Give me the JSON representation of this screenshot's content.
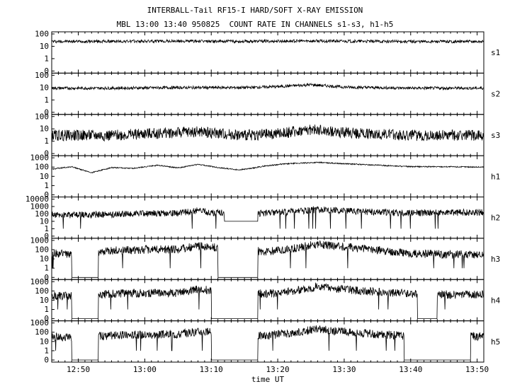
{
  "title": "INTERBALL-Tail RF15-I HARD/SOFT X-RAY EMISSION",
  "subtitle": "MBL 13:00 13:40 950825  COUNT RATE IN CHANNELS s1-s3, h1-h5",
  "xlabel": "time UT",
  "chart_data": {
    "type": "line",
    "title": "INTERBALL-Tail RF15-I HARD/SOFT X-RAY EMISSION",
    "subtitle": "MBL 13:00 13:40 950825  COUNT RATE IN CHANNELS s1-s3, h1-h5",
    "xlabel": "time UT",
    "x_range": [
      "12:46",
      "13:51"
    ],
    "x_ticks": [
      "12:50",
      "13:00",
      "13:10",
      "13:20",
      "13:30",
      "13:40",
      "13:50"
    ],
    "y_scale": "log",
    "grid": false,
    "series": [
      {
        "name": "s1",
        "ylim": [
          0,
          100
        ],
        "y_ticks": [
          "0",
          "1",
          "10",
          "100"
        ],
        "x": [
          "12:46",
          "12:55",
          "13:05",
          "13:15",
          "13:25",
          "13:35",
          "13:45",
          "13:51"
        ],
        "values": [
          25,
          25,
          26,
          25,
          27,
          25,
          24,
          24
        ],
        "gaps": []
      },
      {
        "name": "s2",
        "ylim": [
          0,
          100
        ],
        "y_ticks": [
          "0",
          "1",
          "10",
          "100"
        ],
        "x": [
          "12:46",
          "12:55",
          "13:05",
          "13:15",
          "13:20",
          "13:25",
          "13:30",
          "13:40",
          "13:51"
        ],
        "values": [
          9,
          9,
          10,
          10,
          12,
          17,
          11,
          9,
          9
        ],
        "gaps": []
      },
      {
        "name": "s3",
        "ylim": [
          0,
          100
        ],
        "y_ticks": [
          "0",
          "1",
          "10",
          "100"
        ],
        "x": [
          "12:46",
          "12:55",
          "13:00",
          "13:08",
          "13:15",
          "13:20",
          "13:25",
          "13:30",
          "13:40",
          "13:51"
        ],
        "values": [
          3,
          3,
          4,
          6,
          3,
          4,
          9,
          5,
          3,
          3
        ],
        "gaps": []
      },
      {
        "name": "h1",
        "ylim": [
          0,
          1000
        ],
        "y_ticks": [
          "0",
          "1",
          "10",
          "100",
          "1000"
        ],
        "x": [
          "12:46",
          "12:49",
          "12:52",
          "12:55",
          "12:58",
          "13:02",
          "13:05",
          "13:08",
          "13:11",
          "13:14",
          "13:16",
          "13:18",
          "13:21",
          "13:26",
          "13:30",
          "13:35",
          "13:40",
          "13:45",
          "13:51"
        ],
        "values": [
          60,
          110,
          25,
          90,
          70,
          160,
          80,
          200,
          90,
          50,
          70,
          130,
          220,
          320,
          230,
          160,
          110,
          110,
          100
        ],
        "gaps": []
      },
      {
        "name": "h2",
        "ylim": [
          0,
          10000
        ],
        "y_ticks": [
          "0",
          "1",
          "10",
          "100",
          "1000",
          "10000"
        ],
        "x": [
          "12:46",
          "12:50",
          "12:55",
          "13:00",
          "13:05",
          "13:08",
          "13:10",
          "13:18",
          "13:22",
          "13:26",
          "13:30",
          "13:35",
          "13:40",
          "13:45",
          "13:51"
        ],
        "values": [
          80,
          70,
          90,
          110,
          130,
          300,
          150,
          120,
          200,
          380,
          240,
          180,
          130,
          140,
          170
        ],
        "gaps": [
          [
            "13:12",
            "13:17"
          ]
        ]
      },
      {
        "name": "h3",
        "ylim": [
          0,
          1000
        ],
        "y_ticks": [
          "0",
          "1",
          "10",
          "100",
          "1000"
        ],
        "x": [
          "12:46",
          "12:50",
          "12:55",
          "13:00",
          "13:05",
          "13:08",
          "13:18",
          "13:22",
          "13:26",
          "13:30",
          "13:35",
          "13:40",
          "13:45",
          "13:51"
        ],
        "values": [
          40,
          30,
          80,
          100,
          110,
          250,
          60,
          120,
          400,
          200,
          90,
          40,
          30,
          30
        ],
        "gaps": [
          [
            "12:49",
            "12:53"
          ],
          [
            "13:11",
            "13:17"
          ]
        ]
      },
      {
        "name": "h4",
        "ylim": [
          0,
          1000
        ],
        "y_ticks": [
          "0",
          "1",
          "10",
          "100",
          "1000"
        ],
        "x": [
          "12:46",
          "12:50",
          "12:55",
          "13:00",
          "13:05",
          "13:08",
          "13:18",
          "13:22",
          "13:26",
          "13:30",
          "13:35",
          "13:38",
          "13:45",
          "13:51"
        ],
        "values": [
          30,
          25,
          50,
          60,
          60,
          150,
          50,
          90,
          300,
          140,
          80,
          60,
          40,
          40
        ],
        "gaps": [
          [
            "12:49",
            "12:53"
          ],
          [
            "13:10",
            "13:17"
          ],
          [
            "13:41",
            "13:44"
          ]
        ]
      },
      {
        "name": "h5",
        "ylim": [
          0,
          1000
        ],
        "y_ticks": [
          "0",
          "1",
          "10",
          "100",
          "1000"
        ],
        "x": [
          "12:46",
          "12:50",
          "12:55",
          "13:00",
          "13:05",
          "13:08",
          "13:18",
          "13:22",
          "13:26",
          "13:30",
          "13:35",
          "13:40",
          "13:51"
        ],
        "values": [
          30,
          25,
          45,
          55,
          60,
          120,
          40,
          80,
          220,
          110,
          60,
          40,
          35
        ],
        "gaps": [
          [
            "12:49",
            "12:53"
          ],
          [
            "13:10",
            "13:17"
          ],
          [
            "13:39",
            "13:49"
          ]
        ]
      }
    ]
  }
}
